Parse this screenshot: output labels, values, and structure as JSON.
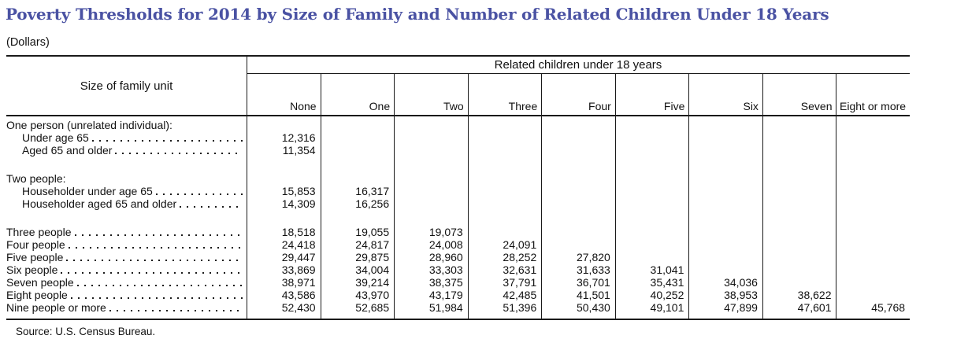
{
  "title": "Poverty Thresholds for 2014 by Size of Family and Number of Related Children Under 18 Years",
  "subtitle": "(Dollars)",
  "source": "Source: U.S. Census Bureau.",
  "colors": {
    "title": "#4a52a3",
    "text": "#111111",
    "rule": "#1a1a1a"
  },
  "table": {
    "stub_header": "Size of family unit",
    "span_header": "Related children under 18 years",
    "columns": [
      "None",
      "One",
      "Two",
      "Three",
      "Four",
      "Five",
      "Six",
      "Seven",
      "Eight or more"
    ],
    "rows": [
      {
        "label": "One person (unrelated individual):",
        "indent": 0,
        "leader": false,
        "values": [
          "",
          "",
          "",
          "",
          "",
          "",
          "",
          "",
          ""
        ]
      },
      {
        "label": "Under age 65",
        "indent": 1,
        "leader": true,
        "values": [
          "12,316",
          "",
          "",
          "",
          "",
          "",
          "",
          "",
          ""
        ]
      },
      {
        "label": "Aged 65 and older",
        "indent": 1,
        "leader": true,
        "values": [
          "11,354",
          "",
          "",
          "",
          "",
          "",
          "",
          "",
          ""
        ]
      },
      {
        "spacer": true
      },
      {
        "label": "Two people:",
        "indent": 0,
        "leader": false,
        "values": [
          "",
          "",
          "",
          "",
          "",
          "",
          "",
          "",
          ""
        ]
      },
      {
        "label": "Householder under age 65",
        "indent": 1,
        "leader": true,
        "values": [
          "15,853",
          "16,317",
          "",
          "",
          "",
          "",
          "",
          "",
          ""
        ]
      },
      {
        "label": "Householder aged 65 and older",
        "indent": 1,
        "leader": true,
        "values": [
          "14,309",
          "16,256",
          "",
          "",
          "",
          "",
          "",
          "",
          ""
        ]
      },
      {
        "spacer": true
      },
      {
        "label": "Three people",
        "indent": 0,
        "leader": true,
        "values": [
          "18,518",
          "19,055",
          "19,073",
          "",
          "",
          "",
          "",
          "",
          ""
        ]
      },
      {
        "label": "Four people",
        "indent": 0,
        "leader": true,
        "values": [
          "24,418",
          "24,817",
          "24,008",
          "24,091",
          "",
          "",
          "",
          "",
          ""
        ]
      },
      {
        "label": "Five people",
        "indent": 0,
        "leader": true,
        "values": [
          "29,447",
          "29,875",
          "28,960",
          "28,252",
          "27,820",
          "",
          "",
          "",
          ""
        ]
      },
      {
        "label": "Six people",
        "indent": 0,
        "leader": true,
        "values": [
          "33,869",
          "34,004",
          "33,303",
          "32,631",
          "31,633",
          "31,041",
          "",
          "",
          ""
        ]
      },
      {
        "label": "Seven people",
        "indent": 0,
        "leader": true,
        "values": [
          "38,971",
          "39,214",
          "38,375",
          "37,791",
          "36,701",
          "35,431",
          "34,036",
          "",
          ""
        ]
      },
      {
        "label": "Eight people",
        "indent": 0,
        "leader": true,
        "values": [
          "43,586",
          "43,970",
          "43,179",
          "42,485",
          "41,501",
          "40,252",
          "38,953",
          "38,622",
          ""
        ]
      },
      {
        "label": "Nine people or more",
        "indent": 0,
        "leader": true,
        "values": [
          "52,430",
          "52,685",
          "51,984",
          "51,396",
          "50,430",
          "49,101",
          "47,899",
          "47,601",
          "45,768"
        ]
      }
    ]
  }
}
